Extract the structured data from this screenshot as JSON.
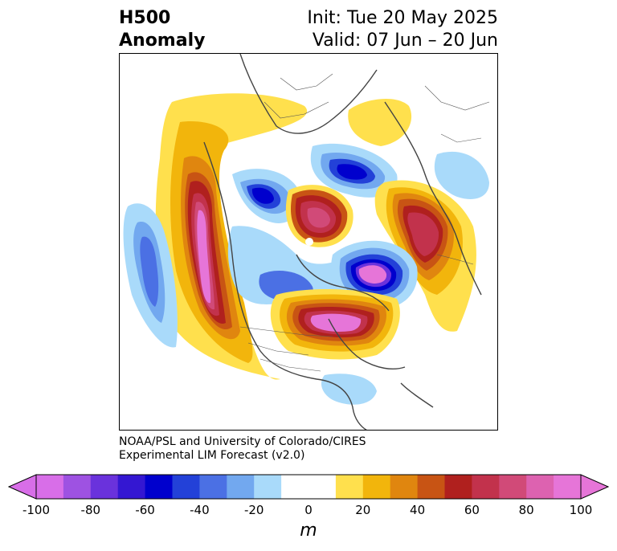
{
  "header": {
    "title_line1": "H500",
    "title_line2": "Anomaly",
    "init_label": "Init: Tue 20 May 2025",
    "valid_label": "Valid: 07 Jun – 20 Jun"
  },
  "credit": {
    "line1": "NOAA/PSL and University of Colorado/CIRES",
    "line2": "Experimental LIM Forecast (v2.0)"
  },
  "colorbar": {
    "unit": "m",
    "ticks": [
      "-100",
      "-80",
      "-60",
      "-40",
      "-20",
      "0",
      "20",
      "40",
      "60",
      "80",
      "100"
    ],
    "colors": [
      "#d86ee8",
      "#9e52e2",
      "#6a32dc",
      "#3417d2",
      "#0000cd",
      "#2341d8",
      "#4b70e4",
      "#72a8ef",
      "#a9dafa",
      "#ffffff",
      "#ffffff",
      "#ffe04d",
      "#f2b50c",
      "#e0860f",
      "#c85414",
      "#b0201e",
      "#c2324c",
      "#d14a78",
      "#dd62b0",
      "#e675d8"
    ],
    "under_color": "#d86ee8",
    "over_color": "#e675d8"
  },
  "map": {
    "projection": "north polar stereographic",
    "field": "500 hPa geopotential height anomaly"
  }
}
